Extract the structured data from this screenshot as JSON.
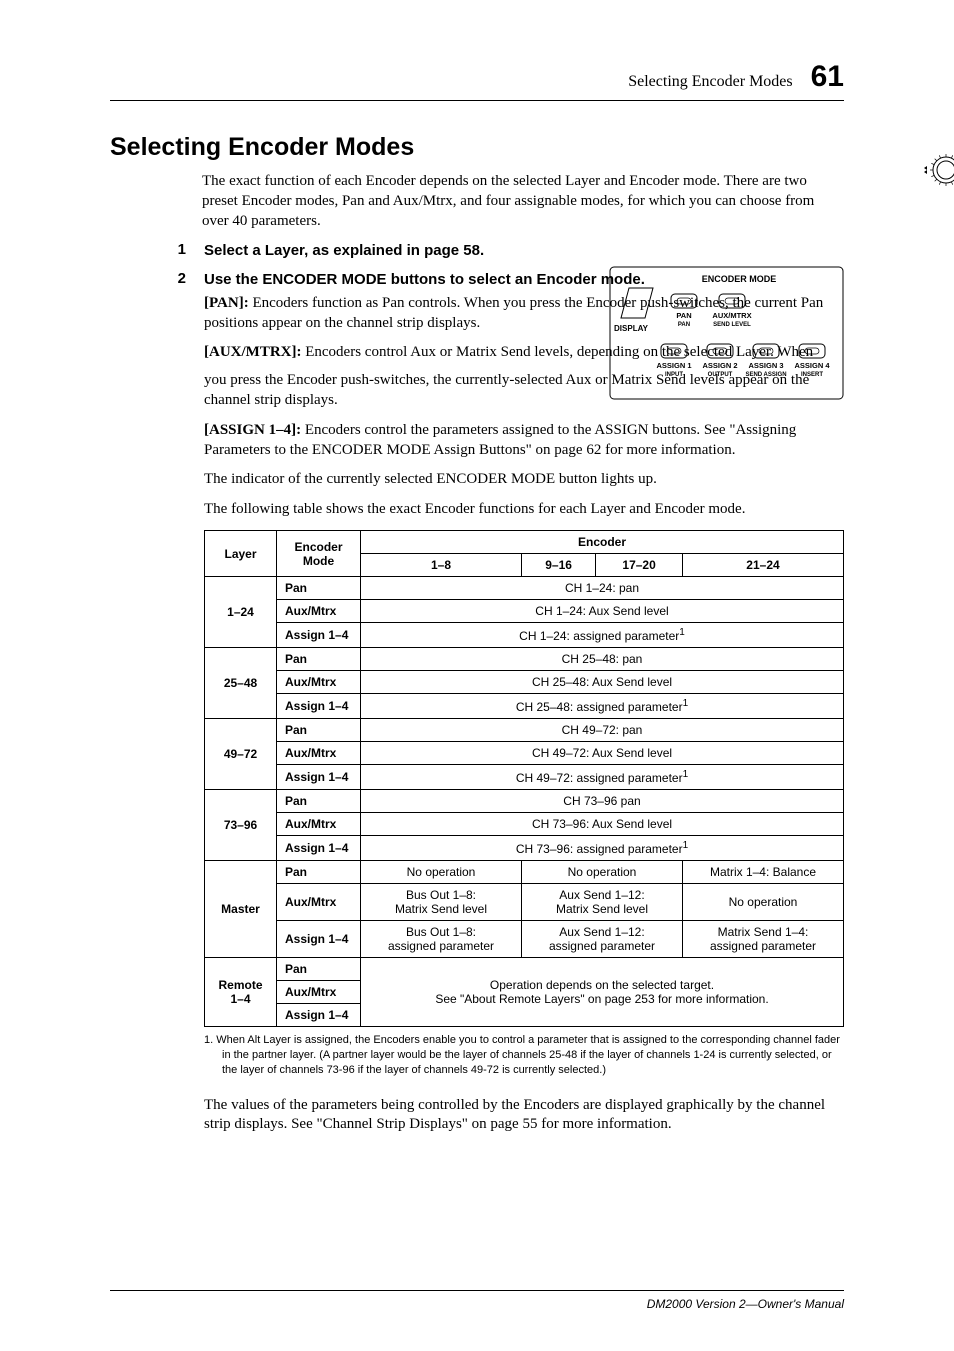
{
  "running_head": {
    "title": "Selecting Encoder Modes",
    "page": "61"
  },
  "section_title": "Selecting Encoder Modes",
  "intro": "The exact function of each Encoder depends on the selected Layer and Encoder mode. There are two preset Encoder modes, Pan and Aux/Mtrx, and four assignable modes, for which you can choose from over 40 parameters.",
  "step1": {
    "num": "1",
    "text": "Select a Layer, as explained in page 58."
  },
  "step2": {
    "num": "2",
    "title": "Use the ENCODER MODE buttons to select an Encoder mode.",
    "pan_label": "[PAN]:",
    "pan_text": " Encoders function as Pan controls. When you press the Encoder push-switches, the current Pan positions appear on the channel strip displays.",
    "aux_label": "[AUX/MTRX]:",
    "aux_text_a": " Encoders control Aux or Matrix Send levels, depending on the selected Layer. When ",
    "aux_text_b": "you press the Encoder push-switches, the currently-selected Aux or Matrix Send levels appear on the channel strip displays.",
    "assign_label": "[ASSIGN 1–4]:",
    "assign_text": " Encoders control the parameters assigned to the ASSIGN buttons. See \"Assigning Parameters to the ENCODER MODE Assign Buttons\" on page 62 for more information."
  },
  "after_steps": {
    "p1": "The indicator of the currently selected ENCODER MODE button lights up.",
    "p2": "The following table shows the exact Encoder functions for each Layer and Encoder mode."
  },
  "panel": {
    "title": "ENCODER MODE",
    "display": "DISPLAY",
    "row1": [
      {
        "top": "PAN",
        "bottom": "PAN"
      },
      {
        "top": "AUX/MTRX",
        "bottom": "SEND LEVEL"
      }
    ],
    "row2": [
      {
        "top": "ASSIGN 1",
        "bottom": "INPUT"
      },
      {
        "top": "ASSIGN 2",
        "bottom": "OUTPUT"
      },
      {
        "top": "ASSIGN 3",
        "bottom": "SEND ASSIGN"
      },
      {
        "top": "ASSIGN 4",
        "bottom": "INSERT"
      }
    ]
  },
  "table": {
    "header": {
      "layer": "Layer",
      "encoder_mode": "Encoder\nMode",
      "encoder": "Encoder",
      "cols": [
        "1–8",
        "9–16",
        "17–20",
        "21–24"
      ]
    },
    "groups": [
      {
        "layer": "1–24",
        "rows": [
          {
            "mode": "Pan",
            "spans": [
              {
                "c": 4,
                "t": "CH 1–24: pan"
              }
            ]
          },
          {
            "mode": "Aux/Mtrx",
            "spans": [
              {
                "c": 4,
                "t": "CH 1–24: Aux Send level"
              }
            ]
          },
          {
            "mode": "Assign 1–4",
            "spans": [
              {
                "c": 4,
                "t": "CH 1–24: assigned parameter",
                "sup": "1"
              }
            ]
          }
        ]
      },
      {
        "layer": "25–48",
        "rows": [
          {
            "mode": "Pan",
            "spans": [
              {
                "c": 4,
                "t": "CH 25–48: pan"
              }
            ]
          },
          {
            "mode": "Aux/Mtrx",
            "spans": [
              {
                "c": 4,
                "t": "CH 25–48: Aux Send level"
              }
            ]
          },
          {
            "mode": "Assign 1–4",
            "spans": [
              {
                "c": 4,
                "t": "CH 25–48: assigned parameter",
                "sup": "1"
              }
            ]
          }
        ]
      },
      {
        "layer": "49–72",
        "rows": [
          {
            "mode": "Pan",
            "spans": [
              {
                "c": 4,
                "t": "CH 49–72: pan"
              }
            ]
          },
          {
            "mode": "Aux/Mtrx",
            "spans": [
              {
                "c": 4,
                "t": "CH 49–72: Aux Send level"
              }
            ]
          },
          {
            "mode": "Assign 1–4",
            "spans": [
              {
                "c": 4,
                "t": "CH 49–72: assigned parameter",
                "sup": "1"
              }
            ]
          }
        ]
      },
      {
        "layer": "73–96",
        "rows": [
          {
            "mode": "Pan",
            "spans": [
              {
                "c": 4,
                "t": "CH 73–96 pan"
              }
            ]
          },
          {
            "mode": "Aux/Mtrx",
            "spans": [
              {
                "c": 4,
                "t": "CH 73–96: Aux Send level"
              }
            ]
          },
          {
            "mode": "Assign 1–4",
            "spans": [
              {
                "c": 4,
                "t": "CH 73–96: assigned parameter",
                "sup": "1"
              }
            ]
          }
        ]
      },
      {
        "layer": "Master",
        "rows": [
          {
            "mode": "Pan",
            "spans": [
              {
                "c": 1,
                "t": "No operation"
              },
              {
                "c": 2,
                "t": "No operation"
              },
              {
                "c": 1,
                "t": "Matrix 1–4: Balance"
              }
            ]
          },
          {
            "mode": "Aux/Mtrx",
            "spans": [
              {
                "c": 1,
                "t": "Bus Out 1–8:\nMatrix Send level"
              },
              {
                "c": 2,
                "t": "Aux Send 1–12:\nMatrix Send level"
              },
              {
                "c": 1,
                "t": "No operation"
              }
            ]
          },
          {
            "mode": "Assign 1–4",
            "spans": [
              {
                "c": 1,
                "t": "Bus Out 1–8:\nassigned parameter"
              },
              {
                "c": 2,
                "t": "Aux Send 1–12:\nassigned parameter"
              },
              {
                "c": 1,
                "t": "Matrix Send 1–4:\nassigned parameter"
              }
            ]
          }
        ]
      },
      {
        "layer": "Remote\n1–4",
        "rows": [
          {
            "mode": "Pan",
            "merged_right": {
              "rowspan": 3,
              "t": "Operation depends on the selected target.\nSee \"About Remote Layers\" on page 253 for more information."
            }
          },
          {
            "mode": "Aux/Mtrx"
          },
          {
            "mode": "Assign 1–4"
          }
        ]
      }
    ]
  },
  "footnote": "1.  When Alt Layer is assigned, the Encoders enable you to control a parameter that is assigned to the corresponding channel fader in the partner layer. (A partner layer would be the layer of channels 25-48 if the layer of channels 1-24 is currently selected, or the layer of channels 73-96 if the layer of channels 49-72 is currently selected.)",
  "closing": "The values of the parameters being controlled by the Encoders are displayed graphically by the channel strip displays. See \"Channel Strip Displays\" on page 55 for more information.",
  "footer": "DM2000 Version 2—Owner's Manual"
}
